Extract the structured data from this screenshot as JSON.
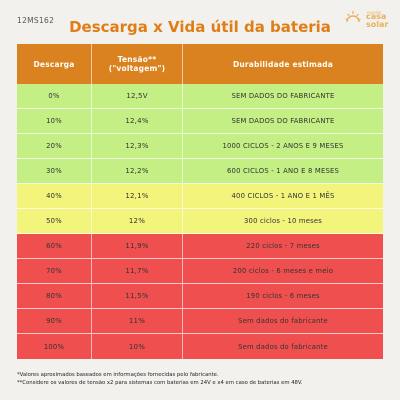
{
  "code": "12MS162",
  "title": "Descarga x Vida útil da bateria",
  "logo": {
    "top": "mundo",
    "line1": "casa",
    "line2": "solar",
    "color": "#e9b05a"
  },
  "table": {
    "headers": {
      "discharge": "Descarga",
      "voltage": "Tensão**\n(\"voltagem\")",
      "durability": "Durabilidade estimada"
    },
    "rows": [
      {
        "discharge": "0%",
        "voltage": "12,5V",
        "durability": "SEM DADOS DO FABRICANTE",
        "color": "green"
      },
      {
        "discharge": "10%",
        "voltage": "12,4%",
        "durability": "SEM DADOS DO FABRICANTE",
        "color": "green"
      },
      {
        "discharge": "20%",
        "voltage": "12,3%",
        "durability": "1000 CICLOS - 2 ANOS E 9 MESES",
        "color": "green"
      },
      {
        "discharge": "30%",
        "voltage": "12,2%",
        "durability": "600 CICLOS - 1 ANO E 8 MESES",
        "color": "green"
      },
      {
        "discharge": "40%",
        "voltage": "12,1%",
        "durability": "400 CICLOS - 1 ANO E 1 MÊS",
        "color": "yellow"
      },
      {
        "discharge": "50%",
        "voltage": "12%",
        "durability": "300 ciclos - 10 meses",
        "color": "yellow"
      },
      {
        "discharge": "60%",
        "voltage": "11,9%",
        "durability": "220 ciclos - 7 meses",
        "color": "red"
      },
      {
        "discharge": "70%",
        "voltage": "11,7%",
        "durability": "200 ciclos - 6 meses e meio",
        "color": "red"
      },
      {
        "discharge": "80%",
        "voltage": "11,5%",
        "durability": "190 ciclos - 6 meses",
        "color": "red"
      },
      {
        "discharge": "90%",
        "voltage": "11%",
        "durability": "Sem dados do fabricante",
        "color": "red"
      },
      {
        "discharge": "100%",
        "voltage": "10%",
        "durability": "Sem dados do fabricante",
        "color": "red"
      }
    ]
  },
  "colors": {
    "header": "#d9821f",
    "green": "#c3ef85",
    "yellow": "#f3f47c",
    "red": "#ef4f4f",
    "title": "#e07d16"
  },
  "footnotes": [
    "*Valores aproximados baseados em informações fornecidas pelo fabricante.",
    "**Considere os valores de tensão x2 para sistemas com baterias em 24V e x4 em caso de baterias em 48V."
  ]
}
